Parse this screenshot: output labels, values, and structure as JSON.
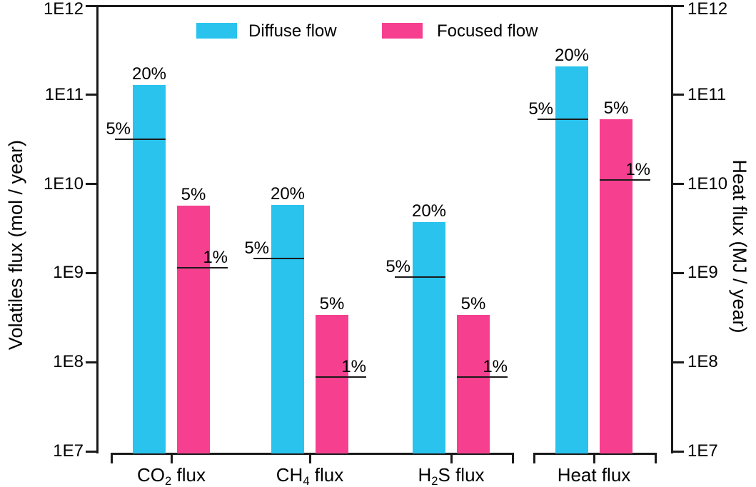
{
  "figure": {
    "left_axis_title": "Volatiles flux (mol / year)",
    "right_axis_title": "Heat flux (MJ / year)"
  },
  "chart_data": {
    "type": "bar",
    "yscale": "log",
    "ylim": [
      10000000.0,
      1000000000000.0
    ],
    "grid": false,
    "legend_position": "top",
    "left_ylabel": "Volatiles flux (mol / year)",
    "right_ylabel": "Heat flux (MJ / year)",
    "y_ticks": [
      {
        "label": "1E12",
        "value": 1000000000000.0
      },
      {
        "label": "1E11",
        "value": 100000000000.0
      },
      {
        "label": "1E10",
        "value": 10000000000.0
      },
      {
        "label": "1E9",
        "value": 1000000000.0
      },
      {
        "label": "1E8",
        "value": 100000000.0
      },
      {
        "label": "1E7",
        "value": 10000000.0
      }
    ],
    "series": [
      {
        "key": "diffuse",
        "name": "Diffuse flow",
        "color": "#29C3EE"
      },
      {
        "key": "focused",
        "name": "Focused flow",
        "color": "#F6408F"
      }
    ],
    "categories": [
      "CO₂ flux",
      "CH₄ flux",
      "H₂S flux",
      "Heat flux"
    ],
    "category_parts": [
      [
        "CO",
        "2",
        " flux"
      ],
      [
        "CH",
        "4",
        " flux"
      ],
      [
        "H",
        "2",
        "S flux"
      ],
      [
        "Heat flux"
      ]
    ],
    "groups": [
      {
        "category": "CO₂ flux",
        "diffuse": {
          "value": 130000000000.0,
          "value_label": "20%",
          "threshold_value": 32000000000.0,
          "threshold_label": "5%"
        },
        "focused": {
          "value": 5700000000.0,
          "value_label": "5%",
          "threshold_value": 1150000000.0,
          "threshold_label": "1%"
        }
      },
      {
        "category": "CH₄ flux",
        "diffuse": {
          "value": 5800000000.0,
          "value_label": "20%",
          "threshold_value": 1450000000.0,
          "threshold_label": "5%"
        },
        "focused": {
          "value": 340000000.0,
          "value_label": "5%",
          "threshold_value": 68000000.0,
          "threshold_label": "1%"
        }
      },
      {
        "category": "H₂S flux",
        "diffuse": {
          "value": 3700000000.0,
          "value_label": "20%",
          "threshold_value": 900000000.0,
          "threshold_label": "5%"
        },
        "focused": {
          "value": 340000000.0,
          "value_label": "5%",
          "threshold_value": 68000000.0,
          "threshold_label": "1%"
        }
      },
      {
        "category": "Heat flux",
        "diffuse": {
          "value": 210000000000.0,
          "value_label": "20%",
          "threshold_value": 53000000000.0,
          "threshold_label": "5%"
        },
        "focused": {
          "value": 53000000000.0,
          "value_label": "5%",
          "threshold_value": 11000000000.0,
          "threshold_label": "1%"
        }
      }
    ],
    "group_brackets": [
      {
        "from": 0,
        "to": 2
      },
      {
        "from": 3,
        "to": 3
      }
    ]
  }
}
